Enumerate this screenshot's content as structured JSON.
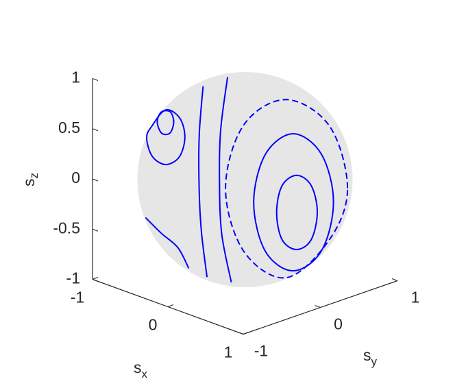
{
  "chart_data": {
    "type": "sphere-lines",
    "xlabel": {
      "text": "s",
      "subscript": "x"
    },
    "ylabel": {
      "text": "s",
      "subscript": "y"
    },
    "zlabel": {
      "text": "s",
      "subscript": "z"
    },
    "xlim": [
      -1,
      1
    ],
    "ylim": [
      -1,
      1
    ],
    "zlim": [
      -1,
      1
    ],
    "xticks": [
      -1,
      0,
      1
    ],
    "yticks": [
      -1,
      0,
      1
    ],
    "zticks": [
      -1,
      -0.5,
      0,
      0.5,
      1
    ],
    "surface_color": "#e6e6e6",
    "series": [
      {
        "color": "#0000ff",
        "style": "solid",
        "closed": true,
        "x": [
          1.0,
          0.97,
          0.91,
          0.88,
          0.89,
          0.89,
          0.89,
          0.95
        ],
        "y": [
          -0.04,
          -0.09,
          -0.22,
          -0.38,
          -0.46,
          -0.39,
          -0.2,
          -0.07
        ],
        "z": [
          -0.04,
          0.23,
          0.35,
          0.28,
          0.04,
          -0.25,
          -0.4,
          -0.32
        ]
      },
      {
        "color": "#0000ff",
        "style": "solid",
        "closed": true,
        "x": [
          0.99,
          0.88,
          0.73,
          0.71,
          0.76,
          0.79,
          0.72,
          0.83
        ],
        "y": [
          0.18,
          0.13,
          -0.09,
          -0.43,
          -0.63,
          -0.51,
          -0.08,
          0.18
        ],
        "z": [
          0.0,
          0.46,
          0.68,
          0.56,
          0.15,
          -0.36,
          -0.69,
          -0.53
        ]
      },
      {
        "color": "#0000ff",
        "style": "dashed",
        "closed": true,
        "x": [
          0.9,
          0.67,
          0.44,
          0.44,
          0.55,
          0.66,
          0.6,
          0.89
        ],
        "y": [
          0.45,
          0.44,
          0.1,
          -0.45,
          -0.79,
          -0.66,
          -0.05,
          0.23
        ],
        "z": [
          0.04,
          0.6,
          0.89,
          0.78,
          0.27,
          -0.36,
          -0.8,
          -0.41
        ]
      },
      {
        "color": "#0000ff",
        "style": "solid",
        "closed": true,
        "x": [
          -0.24,
          -0.42,
          -0.66,
          -0.54,
          -0.34,
          -0.21
        ],
        "y": [
          -0.69,
          -0.56,
          -0.44,
          -0.61,
          -0.75,
          -0.77
        ],
        "z": [
          0.69,
          0.71,
          0.61,
          0.59,
          0.57,
          0.61
        ]
      },
      {
        "color": "#0000ff",
        "style": "solid",
        "closed": true,
        "x": [
          0.0,
          -0.2,
          -0.54,
          -0.65,
          -0.65,
          -0.34,
          -0.1,
          0.03
        ],
        "y": [
          -0.78,
          -0.65,
          -0.5,
          -0.57,
          -0.64,
          -0.87,
          -0.93,
          -0.88
        ],
        "z": [
          0.63,
          0.73,
          0.68,
          0.51,
          0.41,
          0.37,
          0.37,
          0.47
        ]
      },
      {
        "color": "#0000ff",
        "style": "solid",
        "closed": false,
        "x": [
          -0.29,
          0.13,
          0.31,
          0.36,
          0.13
        ],
        "y": [
          -0.26,
          -0.72,
          -0.9,
          -0.92,
          -0.62
        ],
        "z": [
          0.92,
          0.68,
          0.3,
          -0.15,
          -0.77
        ]
      },
      {
        "color": "#0000ff",
        "style": "solid",
        "closed": false,
        "x": [
          -0.19,
          0.3,
          0.49,
          0.54,
          0.33
        ],
        "y": [
          -0.04,
          -0.61,
          -0.81,
          -0.83,
          -0.5
        ],
        "z": [
          0.98,
          0.73,
          0.33,
          -0.17,
          -0.8
        ]
      },
      {
        "color": "#0000ff",
        "style": "solid",
        "closed": false,
        "x": [
          -0.46,
          -0.16,
          0.03,
          -0.02
        ],
        "y": [
          -0.84,
          -0.93,
          -0.9,
          -0.71
        ],
        "z": [
          -0.28,
          -0.33,
          -0.43,
          -0.7
        ]
      }
    ]
  }
}
